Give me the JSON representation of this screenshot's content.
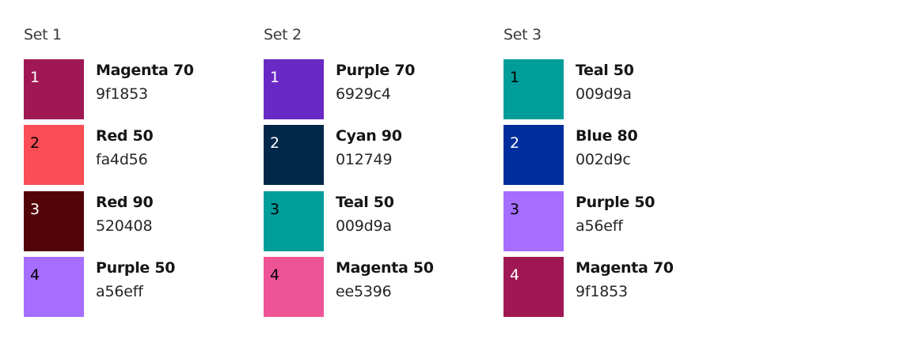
{
  "sets": [
    {
      "title": "Set 1",
      "items": [
        {
          "num": "1",
          "name": "Magenta 70",
          "hex": "9f1853",
          "color": "#9f1853",
          "text_color": "#ffffff"
        },
        {
          "num": "2",
          "name": "Red 50",
          "hex": "fa4d56",
          "color": "#fa4d56",
          "text_color": "#000000"
        },
        {
          "num": "3",
          "name": "Red 90",
          "hex": "520408",
          "color": "#520408",
          "text_color": "#ffffff"
        },
        {
          "num": "4",
          "name": "Purple 50",
          "hex": "a56eff",
          "color": "#a56eff",
          "text_color": "#000000"
        }
      ]
    },
    {
      "title": "Set 2",
      "items": [
        {
          "num": "1",
          "name": "Purple 70",
          "hex": "6929c4",
          "color": "#6929c4",
          "text_color": "#ffffff"
        },
        {
          "num": "2",
          "name": "Cyan 90",
          "hex": "012749",
          "color": "#012749",
          "text_color": "#ffffff"
        },
        {
          "num": "3",
          "name": "Teal 50",
          "hex": "009d9a",
          "color": "#009d9a",
          "text_color": "#000000"
        },
        {
          "num": "4",
          "name": "Magenta 50",
          "hex": "ee5396",
          "color": "#ee5396",
          "text_color": "#000000"
        }
      ]
    },
    {
      "title": "Set 3",
      "items": [
        {
          "num": "1",
          "name": "Teal 50",
          "hex": "009d9a",
          "color": "#009d9a",
          "text_color": "#000000"
        },
        {
          "num": "2",
          "name": "Blue 80",
          "hex": "002d9c",
          "color": "#002d9c",
          "text_color": "#ffffff"
        },
        {
          "num": "3",
          "name": "Purple 50",
          "hex": "a56eff",
          "color": "#a56eff",
          "text_color": "#000000"
        },
        {
          "num": "4",
          "name": "Magenta 70",
          "hex": "9f1853",
          "color": "#9f1853",
          "text_color": "#ffffff"
        }
      ]
    }
  ]
}
